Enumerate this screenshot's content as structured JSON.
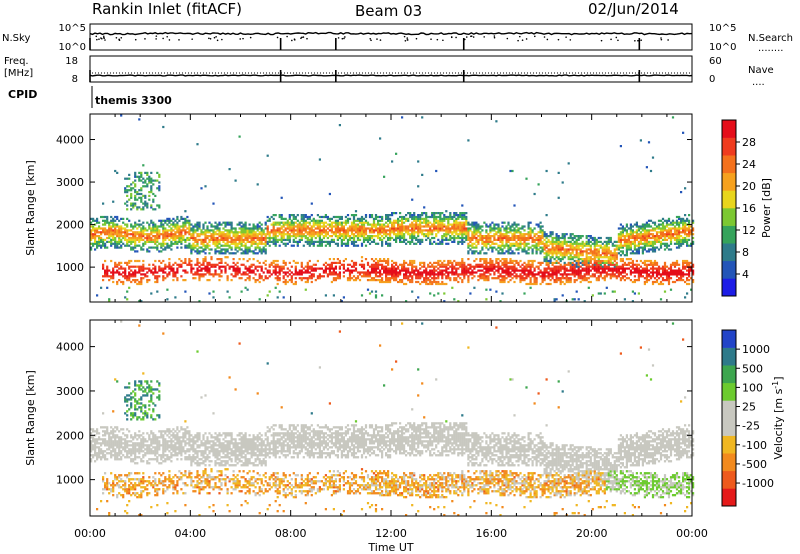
{
  "header": {
    "station": "Rankin Inlet (fitACF)",
    "beam": "Beam 03",
    "date": "02/Jun/2014"
  },
  "strip_panels": {
    "nsky": {
      "left_label": "N.Sky",
      "left_ticks": [
        "10^5",
        "10^0"
      ],
      "right_ticks": [
        "10^5",
        "10^0"
      ],
      "right_label": "N.Search",
      "right_line": "........"
    },
    "freq": {
      "left_label_1": "Freq.",
      "left_label_2": "[MHz]",
      "left_ticks": [
        "18",
        "8"
      ],
      "right_ticks": [
        "60",
        "0"
      ],
      "right_label": "Nave",
      "right_line": "...."
    },
    "cpid": {
      "label": "CPID",
      "program": "themis 3300"
    }
  },
  "time_axis": {
    "label": "Time UT",
    "tick_labels": [
      "00:00",
      "04:00",
      "08:00",
      "12:00",
      "16:00",
      "20:00",
      "00:00"
    ]
  },
  "range_axis": {
    "label": "Slant Range [km]",
    "tick_labels": [
      "1000",
      "2000",
      "3000",
      "4000"
    ]
  },
  "power_colorbar": {
    "label": "Power [dB]",
    "tick_labels": [
      "4",
      "8",
      "12",
      "16",
      "20",
      "24",
      "28"
    ],
    "colors": [
      "#1d1de6",
      "#2355b8",
      "#2e7b8a",
      "#35a35b",
      "#7cc832",
      "#e8d51c",
      "#f6a11e",
      "#f4711c",
      "#ef3b1e",
      "#e50d1a"
    ]
  },
  "velocity_colorbar": {
    "label": "Velocity [m s^-1]",
    "tick_labels": [
      "1000",
      "500",
      "100",
      "25",
      "-25",
      "-100",
      "-500",
      "-1000"
    ],
    "colors": [
      "#2244c8",
      "#2e7a8a",
      "#3da64f",
      "#6ccb2f",
      "#c8c8c0",
      "#c8c8c0",
      "#f0b722",
      "#f28a1e",
      "#ee5a1d",
      "#e51a1a"
    ]
  },
  "chart_data": [
    {
      "type": "heatmap",
      "panel": "power",
      "x_axis": "Time UT (hours)",
      "y_axis": "Slant Range [km]",
      "xlim": [
        0,
        24
      ],
      "ylim": [
        180,
        4600
      ],
      "x_ticks": [
        0,
        4,
        8,
        12,
        16,
        20,
        24
      ],
      "y_ticks": [
        1000,
        2000,
        3000,
        4000
      ],
      "color_scale": "Power [dB]",
      "value_range": [
        0,
        32
      ],
      "bands": [
        {
          "t": [
            0,
            24
          ],
          "range_km": [
            600,
            1100
          ],
          "power_db": 26,
          "description": "strong near-range echoes, broken before 01:00 and dense after 11:00"
        },
        {
          "t": [
            0,
            23.5
          ],
          "range_km": [
            1400,
            2100
          ],
          "power_db": 16,
          "description": "main echo band, peaking ~1600 km 04:00-06:00 and 16:00-17:30"
        },
        {
          "t": [
            1.5,
            2.5
          ],
          "range_km": [
            2400,
            3100
          ],
          "power_db": 10,
          "description": "scattered far-range echoes"
        }
      ]
    },
    {
      "type": "heatmap",
      "panel": "velocity",
      "x_axis": "Time UT (hours)",
      "y_axis": "Slant Range [km]",
      "xlim": [
        0,
        24
      ],
      "ylim": [
        180,
        4600
      ],
      "x_ticks": [
        0,
        4,
        8,
        12,
        16,
        20,
        24
      ],
      "y_ticks": [
        1000,
        2000,
        3000,
        4000
      ],
      "color_scale": "Velocity [m s^-1]",
      "value_range": [
        -1000,
        1000
      ],
      "bands": [
        {
          "t": [
            0,
            24
          ],
          "range_km": [
            1400,
            2200
          ],
          "velocity_ms": 0,
          "description": "near-zero velocity (grey) upper band"
        },
        {
          "t": [
            2,
            22
          ],
          "range_km": [
            600,
            1200
          ],
          "velocity_ms": -300,
          "description": "negative velocity (orange) lower band"
        },
        {
          "t": [
            20.5,
            24
          ],
          "range_km": [
            600,
            1000
          ],
          "velocity_ms": 150,
          "description": "positive velocity (green) late lower band"
        }
      ]
    },
    {
      "type": "line",
      "panel": "N.Sky / N.Search",
      "xlim": [
        0,
        24
      ],
      "series": [
        {
          "values": [
            4.3,
            4.5,
            4.4,
            4.3,
            4.5,
            4.4,
            4.3,
            4.4,
            4.5,
            4.3,
            4.4,
            4.3
          ]
        }
      ]
    },
    {
      "type": "line",
      "panel": "Freq / Nave",
      "xlim": [
        0,
        24
      ],
      "series": [
        {
          "values": [
            10.5,
            10.5,
            10.5,
            10.5,
            10.5,
            10.5,
            10.5,
            10.5,
            10.5,
            10.5,
            10.5,
            10.5
          ]
        }
      ]
    }
  ]
}
